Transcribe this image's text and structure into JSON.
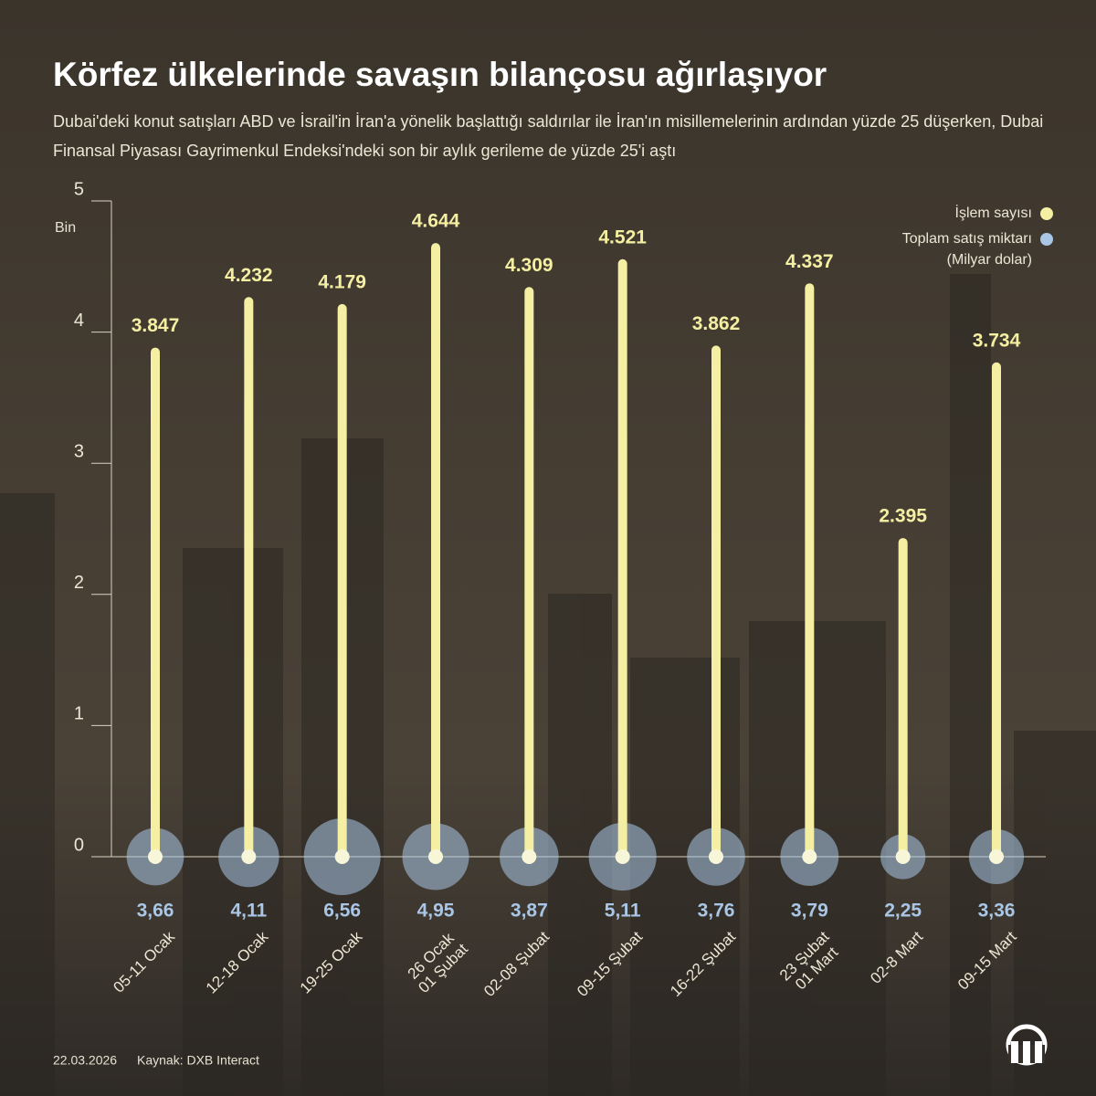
{
  "chart_data": {
    "type": "lollipop",
    "title": "Körfez ülkelerinde savaşın bilançosu ağırlaşıyor",
    "subtitle": "Dubai'deki konut satışları ABD ve İsrail'in İran'a yönelik başlattığı saldırılar ile İran'ın misillemelerinin ardından yüzde 25 düşerken, Dubai Finansal Piyasası Gayrimenkul Endeksi'ndeki son bir aylık gerileme de yüzde 25'i aştı",
    "ylabel": "Bin",
    "categories": [
      "05-11 Ocak",
      "12-18 Ocak",
      "19-25 Ocak",
      "26 Ocak\n01 Şubat",
      "02-08 Şubat",
      "09-15 Şubat",
      "16-22 Şubat",
      "23 Şubat\n01 Mart",
      "02-8 Mart",
      "09-15 Mart"
    ],
    "series": [
      {
        "name": "İşlem sayısı",
        "color": "#f4efa2",
        "values": [
          3.847,
          4.232,
          4.179,
          4.644,
          4.309,
          4.521,
          3.862,
          4.337,
          2.395,
          3.734
        ]
      },
      {
        "name": "Toplam satış miktarı",
        "unit_label": "(Milyar dolar)",
        "color": "#a9c6e6",
        "values": [
          3.66,
          4.11,
          6.56,
          4.95,
          3.87,
          5.11,
          3.76,
          3.79,
          2.25,
          3.36
        ],
        "value_labels": [
          "3,66",
          "4,11",
          "6,56",
          "4,95",
          "3,87",
          "5,11",
          "3,76",
          "3,79",
          "2,25",
          "3,36"
        ]
      }
    ],
    "ylim": [
      0,
      5
    ],
    "yticks": [
      0,
      1,
      2,
      3,
      4,
      5
    ],
    "date": "22.03.2026",
    "source": "Kaynak: DXB Interact"
  }
}
